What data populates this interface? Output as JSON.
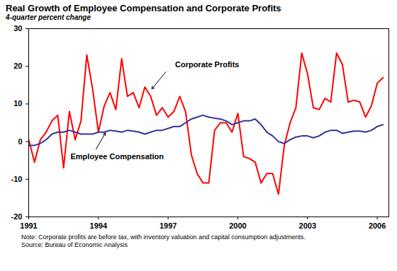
{
  "chart_data": {
    "type": "line",
    "title": "Real Growth of Employee Compensation and Corporate Profits",
    "subtitle": "4-quarter percent change",
    "note": "Note:  Corporate profits are before tax, with inventory valuation and capital consumption adjustments.",
    "source": "Source: Bureau of Economic Analysis",
    "x": [
      1991,
      1991.25,
      1991.5,
      1991.75,
      1992,
      1992.25,
      1992.5,
      1992.75,
      1993,
      1993.25,
      1993.5,
      1993.75,
      1994,
      1994.25,
      1994.5,
      1994.75,
      1995,
      1995.25,
      1995.5,
      1995.75,
      1996,
      1996.25,
      1996.5,
      1996.75,
      1997,
      1997.25,
      1997.5,
      1997.75,
      1998,
      1998.25,
      1998.5,
      1998.75,
      1999,
      1999.25,
      1999.5,
      1999.75,
      2000,
      2000.25,
      2000.5,
      2000.75,
      2001,
      2001.25,
      2001.5,
      2001.75,
      2002,
      2002.25,
      2002.5,
      2002.75,
      2003,
      2003.25,
      2003.5,
      2003.75,
      2004,
      2004.25,
      2004.5,
      2004.75,
      2005,
      2005.25,
      2005.5,
      2005.75,
      2006,
      2006.25
    ],
    "series": [
      {
        "name": "Corporate Profits",
        "color": "#ff0000",
        "values": [
          0.5,
          -5.5,
          0.5,
          2.5,
          5.5,
          7,
          -7,
          8,
          0.5,
          5.5,
          23,
          14,
          2.5,
          9.5,
          13,
          8.5,
          22,
          12,
          13,
          9,
          14.5,
          12,
          7,
          9,
          6.5,
          8,
          12,
          8,
          -3.5,
          -8.5,
          -11,
          -11,
          3,
          5,
          5,
          2.5,
          7.5,
          -4,
          -4.5,
          -5.5,
          -11,
          -8.5,
          -8.5,
          -14,
          -1,
          5,
          9,
          23.5,
          18,
          9,
          8.5,
          11.5,
          10.5,
          23.5,
          20.5,
          10.5,
          11,
          10.5,
          6.5,
          9.5,
          15.5,
          17
        ]
      },
      {
        "name": "Employee Compensation",
        "color": "#333399",
        "values": [
          -1,
          -1,
          -0.5,
          0.5,
          2,
          2.5,
          2.5,
          3,
          2.5,
          2,
          2,
          2,
          2.5,
          2.5,
          3,
          2.8,
          2.5,
          3,
          2.8,
          2.5,
          2,
          2.5,
          3,
          3,
          3.5,
          4,
          4,
          5,
          6,
          6.5,
          7,
          6.5,
          6.2,
          6,
          5.5,
          4.5,
          5,
          5.5,
          5.5,
          6,
          4.5,
          2.5,
          1.5,
          0,
          -0.5,
          0.5,
          1.2,
          1.5,
          1.5,
          1,
          1.5,
          2.5,
          3,
          3,
          2.2,
          2.5,
          2.8,
          2.8,
          2.5,
          3,
          4,
          4.5
        ]
      }
    ],
    "annotations": [
      {
        "text": "Corporate Profits",
        "x": 1997.3,
        "y": 20.5,
        "arrow_from": [
          1996.9,
          18.5
        ],
        "arrow_to": [
          1996.3,
          14
        ]
      },
      {
        "text": "Employee Compensation",
        "x": 1992.8,
        "y": -4,
        "arrow_from": [
          1993.9,
          -2
        ],
        "arrow_to": [
          1994.3,
          2.3
        ]
      }
    ],
    "xlim": [
      1991,
      2006.5
    ],
    "xticks": [
      1991,
      1994,
      1997,
      2000,
      2003,
      2006
    ],
    "ylim": [
      -20,
      30
    ],
    "yticks": [
      -20,
      -10,
      0,
      10,
      20,
      30
    ],
    "grid": false
  }
}
